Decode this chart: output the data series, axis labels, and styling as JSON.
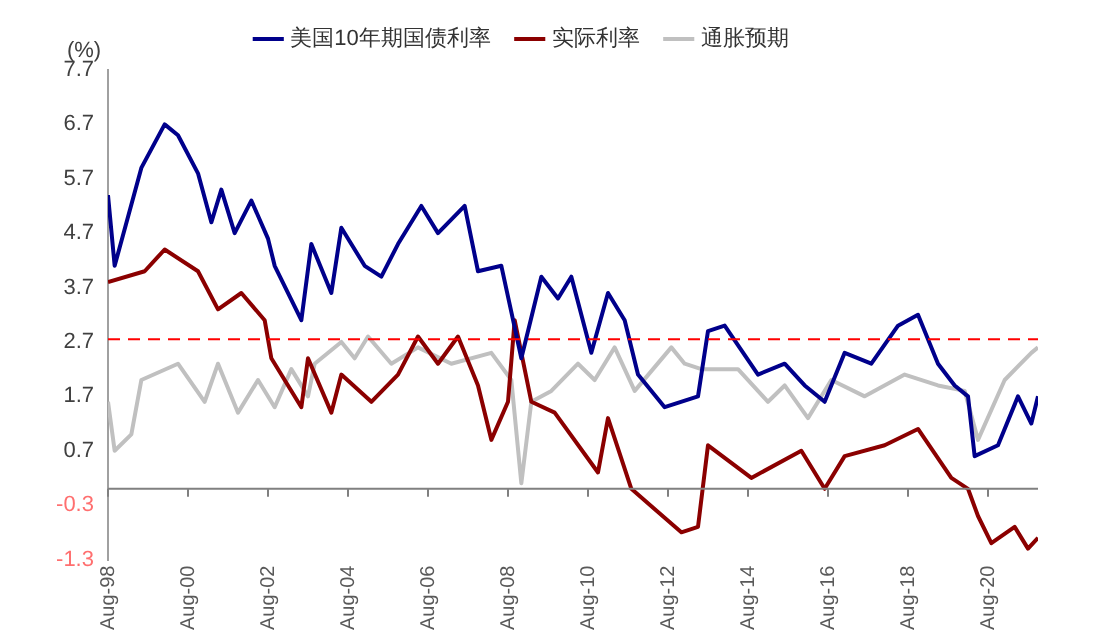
{
  "chart_data": {
    "type": "line",
    "ylabel": "(%)",
    "legend": "top",
    "grid": false,
    "marker": "none",
    "line_style": "solid",
    "xlim": [
      "1998-08",
      "2021-11"
    ],
    "xticks": [
      {
        "value": "1998-08",
        "label": "Aug-98"
      },
      {
        "value": "2000-08",
        "label": "Aug-00"
      },
      {
        "value": "2002-08",
        "label": "Aug-02"
      },
      {
        "value": "2004-08",
        "label": "Aug-04"
      },
      {
        "value": "2006-08",
        "label": "Aug-06"
      },
      {
        "value": "2008-08",
        "label": "Aug-08"
      },
      {
        "value": "2010-08",
        "label": "Aug-10"
      },
      {
        "value": "2012-08",
        "label": "Aug-12"
      },
      {
        "value": "2014-08",
        "label": "Aug-14"
      },
      {
        "value": "2016-08",
        "label": "Aug-16"
      },
      {
        "value": "2018-08",
        "label": "Aug-18"
      },
      {
        "value": "2020-08",
        "label": "Aug-20"
      }
    ],
    "ylim": [
      -1.3,
      7.7
    ],
    "yticks": [
      -1.3,
      -0.3,
      0.7,
      1.7,
      2.7,
      3.7,
      4.7,
      5.7,
      6.7,
      7.7
    ],
    "ref_lines": [
      {
        "axis": "y",
        "value": 2.75,
        "color": "#ff0000",
        "line_style": "dashed"
      }
    ],
    "series": [
      {
        "name": "美国10年期国债利率",
        "color": "#00008b",
        "x": [
          "1998-08",
          "1998-10",
          "1999-06",
          "2000-01",
          "2000-05",
          "2000-11",
          "2001-03",
          "2001-06",
          "2001-10",
          "2002-03",
          "2002-08",
          "2002-10",
          "2003-06",
          "2003-09",
          "2004-03",
          "2004-06",
          "2005-01",
          "2005-06",
          "2005-11",
          "2006-06",
          "2006-11",
          "2007-07",
          "2007-11",
          "2008-06",
          "2008-12",
          "2009-06",
          "2009-11",
          "2010-03",
          "2010-09",
          "2011-02",
          "2011-07",
          "2011-11",
          "2012-07",
          "2013-05",
          "2013-08",
          "2014-01",
          "2014-11",
          "2015-07",
          "2016-01",
          "2016-07",
          "2017-01",
          "2017-09",
          "2018-05",
          "2018-11",
          "2019-05",
          "2019-10",
          "2020-02",
          "2020-04",
          "2020-11",
          "2021-05",
          "2021-09",
          "2021-11"
        ],
        "values": [
          5.4,
          4.1,
          5.9,
          6.7,
          6.5,
          5.8,
          4.9,
          5.5,
          4.7,
          5.3,
          4.6,
          4.1,
          3.1,
          4.5,
          3.6,
          4.8,
          4.1,
          3.9,
          4.5,
          5.2,
          4.7,
          5.2,
          4.0,
          4.1,
          2.4,
          3.9,
          3.5,
          3.9,
          2.5,
          3.6,
          3.1,
          2.1,
          1.5,
          1.7,
          2.9,
          3.0,
          2.1,
          2.3,
          1.9,
          1.6,
          2.5,
          2.3,
          3.0,
          3.2,
          2.3,
          1.9,
          1.7,
          0.6,
          0.8,
          1.7,
          1.2,
          1.7
        ]
      },
      {
        "name": "实际利率",
        "color": "#8b0000",
        "x": [
          "1998-08",
          "1999-07",
          "2000-01",
          "2000-11",
          "2001-05",
          "2001-12",
          "2002-07",
          "2002-09",
          "2003-06",
          "2003-08",
          "2004-03",
          "2004-06",
          "2005-03",
          "2005-11",
          "2006-05",
          "2006-11",
          "2007-05",
          "2007-11",
          "2008-03",
          "2008-08",
          "2008-10",
          "2009-03",
          "2009-10",
          "2010-11",
          "2011-02",
          "2011-09",
          "2012-12",
          "2013-05",
          "2013-08",
          "2014-09",
          "2015-12",
          "2016-07",
          "2017-01",
          "2018-01",
          "2018-11",
          "2019-09",
          "2020-02",
          "2020-05",
          "2020-09",
          "2021-04",
          "2021-08",
          "2021-11"
        ],
        "values": [
          3.8,
          4.0,
          4.4,
          4.0,
          3.3,
          3.6,
          3.1,
          2.4,
          1.5,
          2.4,
          1.4,
          2.1,
          1.6,
          2.1,
          2.8,
          2.3,
          2.8,
          1.9,
          0.9,
          1.6,
          3.1,
          1.6,
          1.4,
          0.3,
          1.3,
          0.0,
          -0.8,
          -0.7,
          0.8,
          0.2,
          0.7,
          0.0,
          0.6,
          0.8,
          1.1,
          0.2,
          0.0,
          -0.5,
          -1.0,
          -0.7,
          -1.1,
          -0.9
        ]
      },
      {
        "name": "通胀预期",
        "color": "#c0c0c0",
        "x": [
          "1998-08",
          "1998-10",
          "1999-03",
          "1999-06",
          "2000-05",
          "2001-01",
          "2001-05",
          "2001-11",
          "2002-05",
          "2002-10",
          "2003-03",
          "2003-08",
          "2003-10",
          "2004-06",
          "2004-10",
          "2005-02",
          "2005-09",
          "2006-05",
          "2007-03",
          "2008-03",
          "2008-09",
          "2008-12",
          "2009-03",
          "2009-09",
          "2010-05",
          "2010-10",
          "2011-04",
          "2011-10",
          "2012-09",
          "2013-01",
          "2013-06",
          "2014-05",
          "2015-02",
          "2015-07",
          "2016-02",
          "2016-09",
          "2017-07",
          "2018-07",
          "2019-05",
          "2020-01",
          "2020-05",
          "2021-01",
          "2021-09",
          "2021-11"
        ],
        "values": [
          1.6,
          0.7,
          1.0,
          2.0,
          2.3,
          1.6,
          2.3,
          1.4,
          2.0,
          1.5,
          2.2,
          1.7,
          2.3,
          2.7,
          2.4,
          2.8,
          2.3,
          2.6,
          2.3,
          2.5,
          2.0,
          0.1,
          1.6,
          1.8,
          2.3,
          2.0,
          2.6,
          1.8,
          2.6,
          2.3,
          2.2,
          2.2,
          1.6,
          1.9,
          1.3,
          2.0,
          1.7,
          2.1,
          1.9,
          1.8,
          0.9,
          2.0,
          2.5,
          2.6
        ]
      }
    ]
  }
}
